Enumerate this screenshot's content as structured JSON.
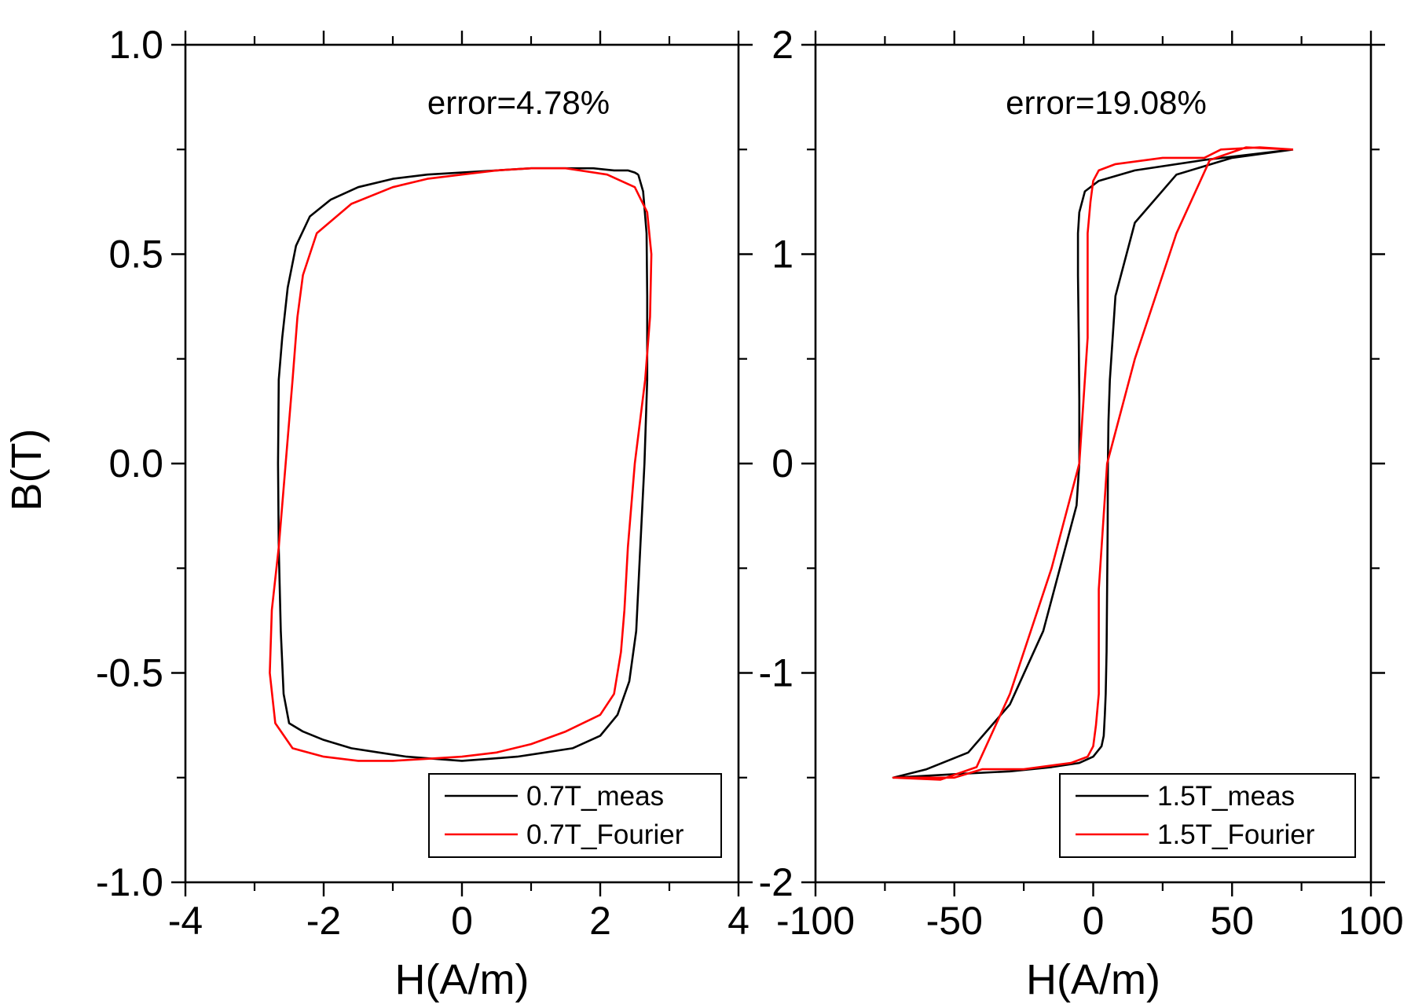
{
  "figure": {
    "ylabel": "B(T)"
  },
  "chart_data": [
    {
      "type": "line",
      "xlabel": "H(A/m)",
      "ylabel": "B(T)",
      "xlim": [
        -4,
        4
      ],
      "ylim": [
        -1.0,
        1.0
      ],
      "xticks": [
        -4,
        -2,
        0,
        2,
        4
      ],
      "xtick_labels": [
        "-4",
        "-2",
        "0",
        "2",
        "4"
      ],
      "yticks": [
        -1.0,
        -0.5,
        0.0,
        0.5,
        1.0
      ],
      "ytick_labels": [
        "-1.0",
        "-0.5",
        "0.0",
        "0.5",
        "1.0"
      ],
      "grid": false,
      "annotation": "error=4.78%",
      "legend_position": "bottom-right",
      "series": [
        {
          "name": "0.7T_meas",
          "color": "#000000",
          "x": [
            2.55,
            2.62,
            2.67,
            2.68,
            2.68,
            2.64,
            2.58,
            2.52,
            2.42,
            2.25,
            2.0,
            1.6,
            1.2,
            0.8,
            0.4,
            0.0,
            -0.4,
            -0.8,
            -1.2,
            -1.6,
            -2.0,
            -2.3,
            -2.5,
            -2.58,
            -2.62,
            -2.65,
            -2.66,
            -2.65,
            -2.6,
            -2.52,
            -2.4,
            -2.2,
            -1.9,
            -1.5,
            -1.0,
            -0.5,
            0.0,
            0.5,
            1.0,
            1.5,
            1.9,
            2.2,
            2.4,
            2.5,
            2.55
          ],
          "y": [
            0.69,
            0.65,
            0.55,
            0.4,
            0.2,
            0.0,
            -0.2,
            -0.4,
            -0.52,
            -0.6,
            -0.65,
            -0.68,
            -0.69,
            -0.7,
            -0.705,
            -0.71,
            -0.705,
            -0.7,
            -0.69,
            -0.68,
            -0.66,
            -0.64,
            -0.62,
            -0.55,
            -0.4,
            -0.2,
            0.0,
            0.2,
            0.3,
            0.42,
            0.52,
            0.59,
            0.63,
            0.66,
            0.68,
            0.69,
            0.695,
            0.7,
            0.705,
            0.705,
            0.705,
            0.7,
            0.7,
            0.695,
            0.69
          ]
        },
        {
          "name": "0.7T_Fourier",
          "color": "#ff0000",
          "x": [
            1.5,
            2.1,
            2.5,
            2.68,
            2.74,
            2.72,
            2.65,
            2.5,
            2.4,
            2.35,
            2.3,
            2.2,
            2.0,
            1.5,
            1.0,
            0.5,
            0.0,
            -0.5,
            -1.0,
            -1.5,
            -2.0,
            -2.45,
            -2.7,
            -2.78,
            -2.75,
            -2.65,
            -2.55,
            -2.45,
            -2.38,
            -2.3,
            -2.1,
            -1.6,
            -1.0,
            -0.5,
            0.0,
            0.5,
            1.0,
            1.5
          ],
          "y": [
            0.705,
            0.69,
            0.66,
            0.6,
            0.5,
            0.35,
            0.2,
            0.0,
            -0.2,
            -0.35,
            -0.45,
            -0.55,
            -0.6,
            -0.64,
            -0.67,
            -0.69,
            -0.7,
            -0.705,
            -0.71,
            -0.71,
            -0.7,
            -0.68,
            -0.62,
            -0.5,
            -0.35,
            -0.2,
            0.0,
            0.2,
            0.35,
            0.45,
            0.55,
            0.62,
            0.66,
            0.68,
            0.69,
            0.7,
            0.705,
            0.705
          ]
        }
      ]
    },
    {
      "type": "line",
      "xlabel": "H(A/m)",
      "ylabel": "",
      "xlim": [
        -100,
        100
      ],
      "ylim": [
        -2,
        2
      ],
      "xticks": [
        -100,
        -50,
        0,
        50,
        100
      ],
      "xtick_labels": [
        "-100",
        "-50",
        "0",
        "50",
        "100"
      ],
      "yticks": [
        -2,
        -1,
        0,
        1,
        2
      ],
      "ytick_labels": [
        "-2",
        "-1",
        "0",
        "1",
        "2"
      ],
      "grid": false,
      "annotation": "error=19.08%",
      "legend_position": "bottom-right",
      "series": [
        {
          "name": "1.5T_meas",
          "color": "#000000",
          "x": [
            72,
            50,
            30,
            15,
            8,
            6,
            5.5,
            5.3,
            5.2,
            5.0,
            4.8,
            4.5,
            4.2,
            3.8,
            3.0,
            0,
            -5,
            -15,
            -30,
            -45,
            -72,
            -60,
            -45,
            -30,
            -18,
            -10,
            -6,
            -5,
            -5,
            -5.2,
            -5.5,
            -5.5,
            -5,
            -3,
            2,
            15,
            40,
            72
          ],
          "y": [
            1.5,
            1.46,
            1.38,
            1.15,
            0.8,
            0.4,
            0.2,
            0.0,
            -0.3,
            -0.6,
            -0.9,
            -1.1,
            -1.2,
            -1.3,
            -1.35,
            -1.4,
            -1.43,
            -1.45,
            -1.47,
            -1.48,
            -1.5,
            -1.46,
            -1.38,
            -1.15,
            -0.8,
            -0.4,
            -0.2,
            0.0,
            0.3,
            0.6,
            0.9,
            1.1,
            1.2,
            1.3,
            1.35,
            1.4,
            1.45,
            1.5
          ]
        },
        {
          "name": "1.5T_Fourier",
          "color": "#ff0000",
          "x": [
            72,
            55,
            42,
            30,
            15,
            5,
            2,
            2,
            1,
            0,
            -2,
            -8,
            -25,
            -40,
            -50,
            -72,
            -55,
            -42,
            -30,
            -15,
            -5,
            -2,
            -2,
            -1,
            0,
            2,
            8,
            25,
            40,
            46,
            60,
            72
          ],
          "y": [
            1.5,
            1.51,
            1.45,
            1.1,
            0.5,
            0.0,
            -0.6,
            -1.1,
            -1.25,
            -1.35,
            -1.4,
            -1.43,
            -1.46,
            -1.46,
            -1.5,
            -1.5,
            -1.51,
            -1.45,
            -1.1,
            -0.5,
            0.0,
            0.6,
            1.1,
            1.25,
            1.35,
            1.4,
            1.43,
            1.46,
            1.46,
            1.5,
            1.51,
            1.5
          ]
        }
      ]
    }
  ]
}
